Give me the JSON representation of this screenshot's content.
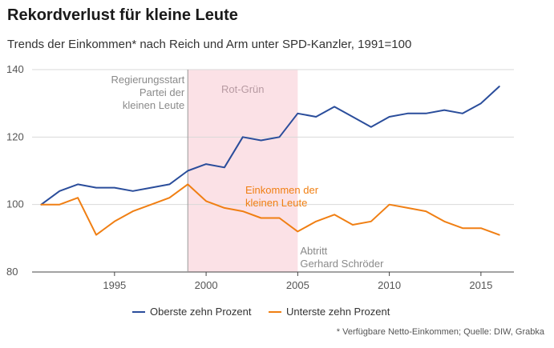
{
  "title": "Rekordverlust für kleine Leute",
  "subtitle": "Trends der Einkommen* nach Reich und Arm unter SPD-Kanzler, 1991=100",
  "source": "* Verfügbare Netto-Einkommen; Quelle: DIW, Grabka",
  "colors": {
    "top": "#2a4d9b",
    "bottom": "#f07f13",
    "shade": "#fbe1e6",
    "grid": "#d9d9d9",
    "annotation_gray": "#8a8a8a"
  },
  "chart_data": {
    "type": "line",
    "title": "Rekordverlust für kleine Leute",
    "subtitle": "Trends der Einkommen* nach Reich und Arm unter SPD-Kanzler, 1991=100",
    "x": [
      1991,
      1992,
      1993,
      1994,
      1995,
      1996,
      1997,
      1998,
      1999,
      2000,
      2001,
      2002,
      2003,
      2004,
      2005,
      2006,
      2007,
      2008,
      2009,
      2010,
      2011,
      2012,
      2013,
      2014,
      2015,
      2016
    ],
    "series": [
      {
        "name": "Oberste zehn Prozent",
        "color": "#2a4d9b",
        "values": [
          100,
          104,
          106,
          105,
          105,
          104,
          105,
          106,
          110,
          112,
          111,
          120,
          119,
          120,
          127,
          126,
          129,
          126,
          123,
          126,
          127,
          127,
          128,
          127,
          130,
          135
        ]
      },
      {
        "name": "Unterste zehn Prozent",
        "color": "#f07f13",
        "values": [
          100,
          100,
          102,
          91,
          95,
          98,
          100,
          102,
          106,
          101,
          99,
          98,
          96,
          96,
          92,
          95,
          97,
          94,
          95,
          100,
          99,
          98,
          95,
          93,
          93,
          91
        ]
      }
    ],
    "xlim": [
      1990.5,
      2016.8
    ],
    "ylim": [
      80,
      140
    ],
    "xticks": [
      1995,
      2000,
      2005,
      2010,
      2015
    ],
    "xtick_labels": [
      "1995",
      "2000",
      "2005",
      "2010",
      "2015"
    ],
    "yticks": [
      80,
      100,
      120,
      140
    ],
    "ytick_labels": [
      "80",
      "100",
      "120",
      "140"
    ],
    "grid": true,
    "legend_position": "bottom",
    "shaded_period": {
      "from": 1999,
      "to": 2005,
      "label": "Rot-Grün"
    },
    "annotations": {
      "start": {
        "x": 1999,
        "lines": [
          "Regierungsstart",
          "Partei der",
          "kleinen Leute"
        ]
      },
      "end": {
        "x": 2005,
        "lines": [
          "Abtritt",
          "Gerhard Schröder"
        ]
      },
      "series_label": {
        "lines": [
          "Einkommen der",
          "kleinen Leute"
        ]
      }
    }
  }
}
